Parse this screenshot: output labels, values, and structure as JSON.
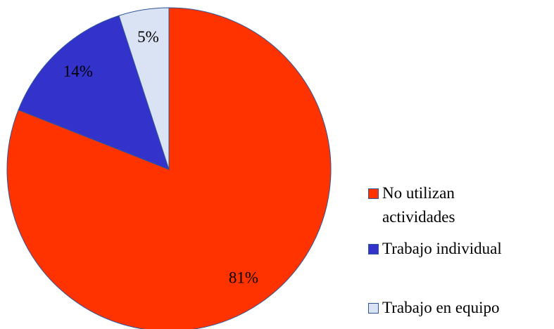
{
  "chart_data": {
    "type": "pie",
    "categories": [
      "No utilizan actividades",
      "Trabajo individual",
      "Trabajo en equipo"
    ],
    "values": [
      81,
      14,
      5
    ],
    "value_labels": [
      "81%",
      "14%",
      "5%"
    ],
    "colors": [
      "#ff3300",
      "#3333cc",
      "#dae3f3"
    ],
    "legend": "right"
  }
}
